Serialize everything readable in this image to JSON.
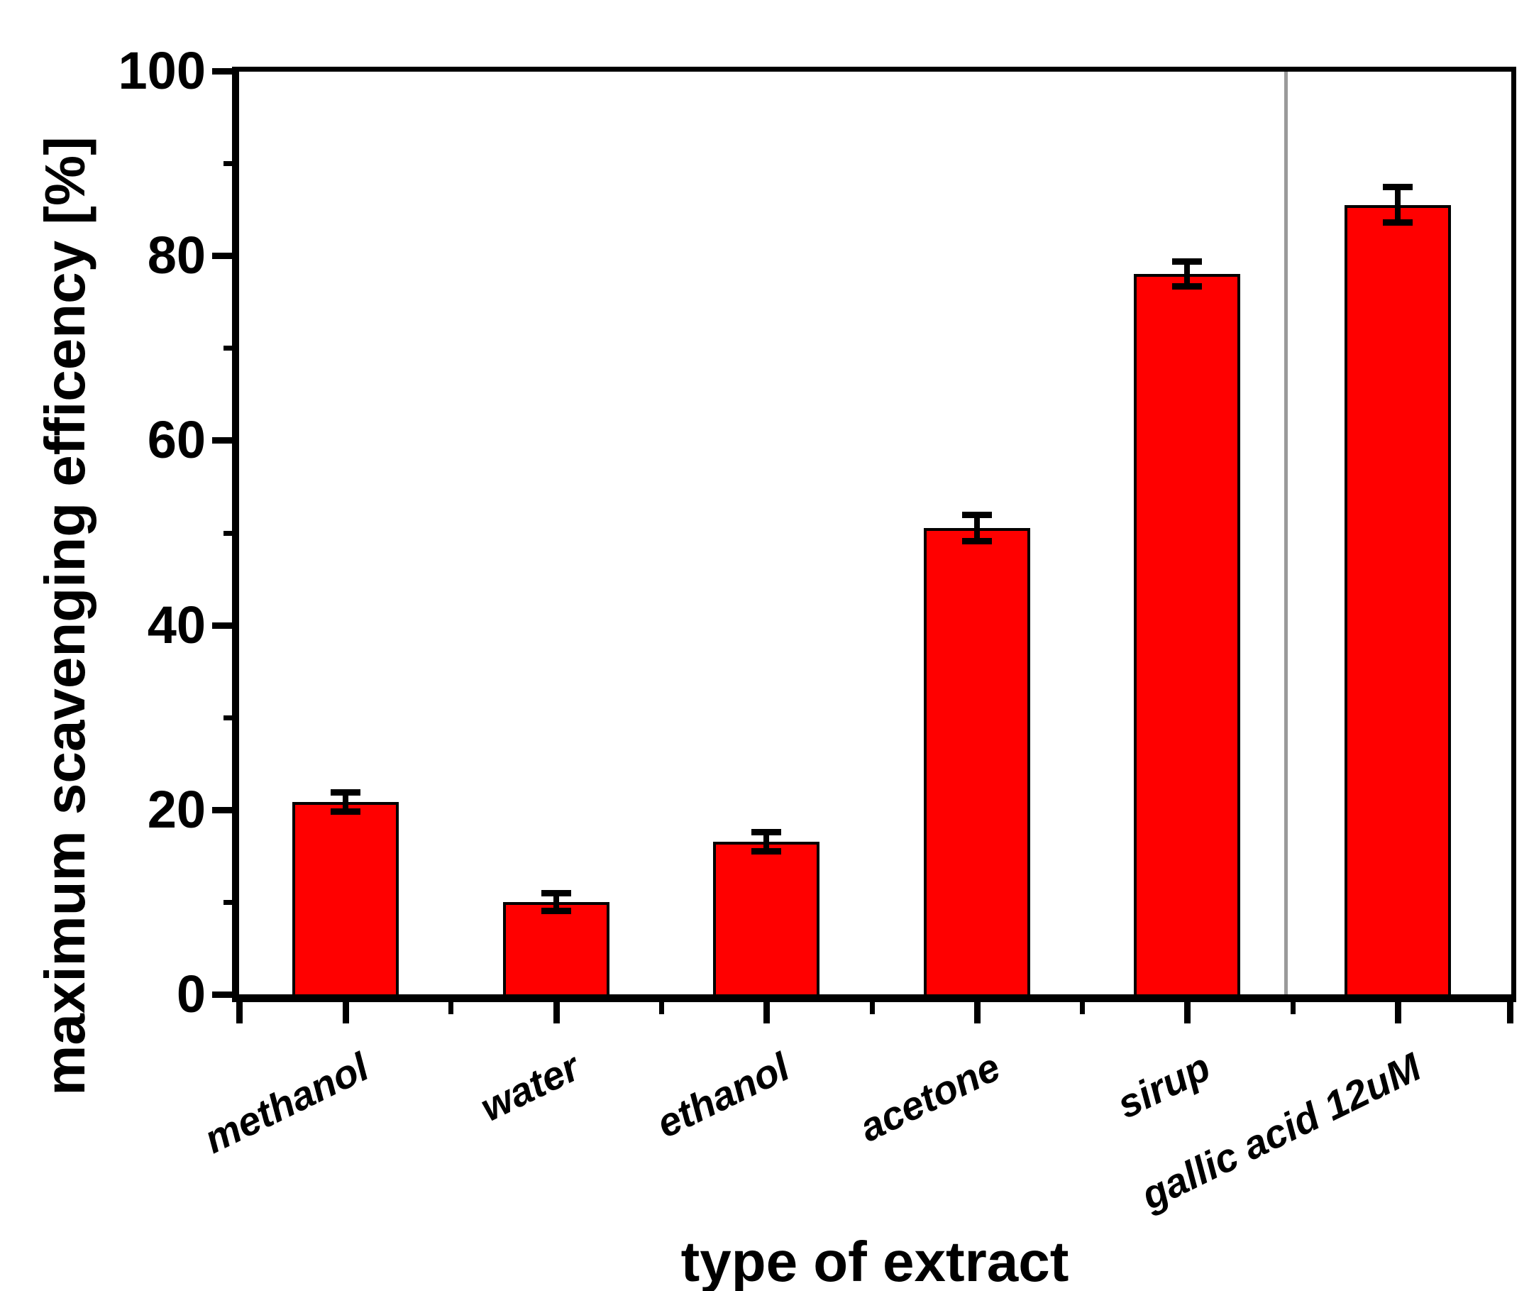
{
  "chart_data": {
    "type": "bar",
    "title": "",
    "xlabel": "type of extract",
    "ylabel": "maximum scavenging efficency [%]",
    "categories": [
      "methanol",
      "water",
      "ethanol",
      "acetone",
      "sirup",
      "gallic acid 12uM"
    ],
    "values": [
      20.8,
      10.0,
      16.5,
      50.5,
      78.0,
      85.5
    ],
    "errors": [
      1.0,
      0.9,
      1.0,
      1.4,
      1.3,
      1.9
    ],
    "ylim": [
      0,
      100
    ],
    "y_major_ticks": [
      0,
      20,
      40,
      60,
      80,
      100
    ],
    "y_tick_labels": [
      "0",
      "20",
      "40",
      "60",
      "80",
      "100"
    ],
    "y_minor_ticks": [
      10,
      30,
      50,
      70,
      90
    ],
    "grid": false,
    "legend": null,
    "bar_color": "#ff0000",
    "bar_border_color": "#000000",
    "error_bar_color": "#000000",
    "axis_color": "#000000",
    "divider_color": "#9a9a9a",
    "divider_between": [
      "sirup",
      "gallic acid 12uM"
    ]
  }
}
